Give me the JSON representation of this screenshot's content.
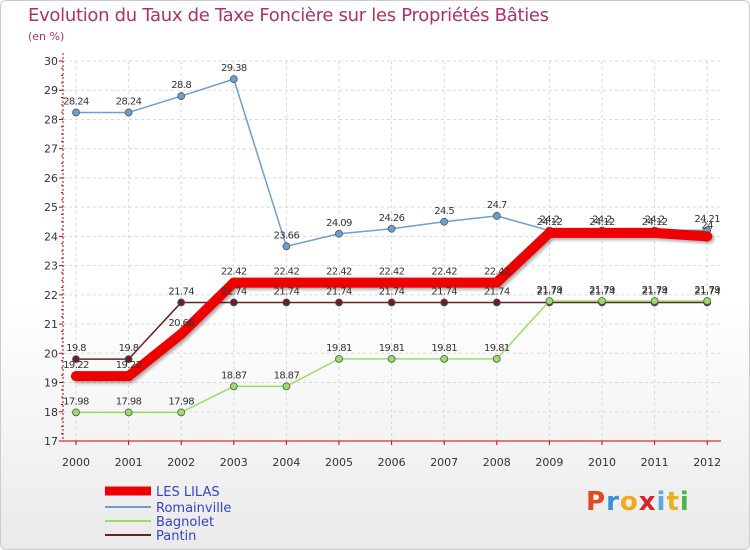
{
  "chart_data": {
    "type": "line",
    "title": "Evolution du Taux de Taxe Foncière sur les Propriétés Bâties",
    "ylabel": "(en %)",
    "xlabel": "",
    "ylim": [
      17,
      30
    ],
    "yticks": [
      "17",
      "18",
      "19",
      "20",
      "21",
      "22",
      "23",
      "24",
      "25",
      "26",
      "27",
      "28",
      "29",
      "30"
    ],
    "categories": [
      "2000",
      "2001",
      "2002",
      "2003",
      "2004",
      "2005",
      "2006",
      "2007",
      "2008",
      "2009",
      "2010",
      "2011",
      "2012"
    ],
    "series": [
      {
        "name": "Pantin",
        "color": "#6b1f24",
        "values": [
          19.8,
          19.8,
          21.74,
          21.74,
          21.74,
          21.74,
          21.74,
          21.74,
          21.74,
          21.74,
          21.74,
          21.74,
          21.74
        ],
        "labels": [
          "19.8",
          "19.8",
          "21.74",
          "21.74",
          "21.74",
          "21.74",
          "21.74",
          "21.74",
          "21.74",
          "21.74",
          "21.74",
          "21.74",
          "21.74"
        ]
      },
      {
        "name": "Bagnolet",
        "color": "#99dd66",
        "values": [
          17.98,
          17.98,
          17.98,
          18.87,
          18.87,
          19.81,
          19.81,
          19.81,
          19.81,
          21.79,
          21.79,
          21.79,
          21.79
        ],
        "labels": [
          "17.98",
          "17.98",
          "17.98",
          "18.87",
          "18.87",
          "19.81",
          "19.81",
          "19.81",
          "19.81",
          "21.79",
          "21.79",
          "21.79",
          "21.79"
        ]
      },
      {
        "name": "Romainville",
        "color": "#6aa0d0",
        "values": [
          28.24,
          28.24,
          28.8,
          29.38,
          23.66,
          24.09,
          24.26,
          24.5,
          24.7,
          24.2,
          24.2,
          24.2,
          24.21
        ],
        "labels": [
          "28.24",
          "28.24",
          "28.8",
          "29.38",
          "23.66",
          "24.09",
          "24.26",
          "24.5",
          "24.7",
          "24.2",
          "24.2",
          "24.2",
          "24.21"
        ]
      },
      {
        "name": "LES LILAS",
        "color": "#ee0000",
        "values": [
          19.22,
          19.22,
          20.66,
          22.42,
          22.42,
          22.42,
          22.42,
          22.42,
          22.42,
          24.12,
          24.12,
          24.12,
          24
        ],
        "labels": [
          "19.22",
          "19.22",
          "20.66",
          "22.42",
          "22.42",
          "22.42",
          "22.42",
          "22.42",
          "22.42",
          "24.12",
          "24.12",
          "24.12",
          "24"
        ]
      }
    ],
    "legend": {
      "placement": "bottom-left",
      "order": [
        "LES LILAS",
        "Romainville",
        "Bagnolet",
        "Pantin"
      ]
    }
  },
  "logo": {
    "letters": [
      "P",
      "r",
      "o",
      "x",
      "i",
      "t",
      "i"
    ],
    "colors": [
      "#e04a1c",
      "#3b8fd6",
      "#f2a818",
      "#d6252a",
      "#5aa8e0",
      "#e8b020",
      "#4cb34a"
    ]
  }
}
